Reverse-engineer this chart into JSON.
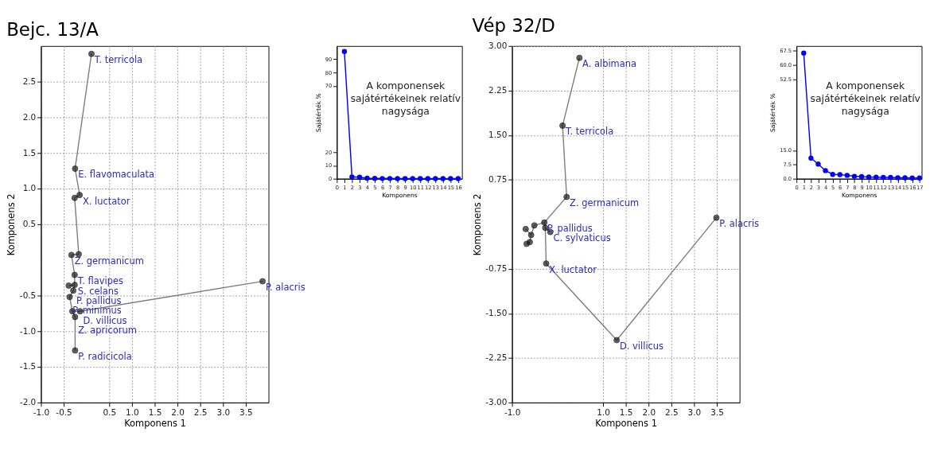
{
  "chart_data": [
    {
      "type": "scatter",
      "title": "Bejc. 13/A",
      "xlabel": "Komponens 1",
      "ylabel": "Komponens 2",
      "xlim": [
        -1,
        4
      ],
      "ylim": [
        -2,
        3
      ],
      "grid": true,
      "xticks": [
        {
          "value": -1,
          "label": "-1.0"
        },
        -0.5,
        0.5,
        {
          "value": 1,
          "label": "1.0"
        },
        1.5,
        {
          "value": 2,
          "label": "2.0"
        },
        2.5,
        {
          "value": 3,
          "label": "3.0"
        },
        3.5
      ],
      "yticks": [
        2.5,
        {
          "value": 2,
          "label": "2.0"
        },
        1.5,
        {
          "value": 1,
          "label": "1.0"
        },
        0.5,
        -0.5,
        {
          "value": -1,
          "label": "-1.0"
        },
        -1.5,
        {
          "value": -2,
          "label": "-2.0"
        }
      ],
      "series": [
        {
          "type": "line",
          "color": "#808080",
          "x": [
            0.11,
            -0.25,
            -0.15,
            -0.26,
            -0.17,
            -0.33,
            -0.26,
            -0.26,
            -0.29,
            -0.37,
            -0.31,
            -0.25,
            -0.25,
            null,
            -0.26,
            -0.39,
            null,
            -0.31,
            -0.14,
            3.87
          ],
          "values": [
            2.89,
            1.28,
            0.91,
            0.87,
            0.08,
            0.07,
            -0.21,
            -0.35,
            -0.43,
            -0.52,
            -0.72,
            -0.8,
            -1.27,
            null,
            -0.35,
            -0.36,
            null,
            -0.72,
            -0.72,
            -0.3
          ]
        },
        {
          "type": "scatter",
          "color": "#1a1a1a",
          "marker": "circle",
          "x": [
            0.11,
            -0.25,
            -0.15,
            -0.26,
            -0.33,
            -0.17,
            -0.26,
            -0.39,
            -0.26,
            -0.29,
            -0.37,
            -0.31,
            -0.14,
            -0.25,
            -0.25,
            3.87
          ],
          "values": [
            2.89,
            1.28,
            0.91,
            0.87,
            0.07,
            0.08,
            -0.21,
            -0.36,
            -0.35,
            -0.43,
            -0.52,
            -0.72,
            -0.72,
            -0.8,
            -1.27,
            -0.3
          ],
          "value_labels": [
            "T. terricola",
            "E. flavomaculata",
            "X. luctator",
            null,
            "Z. germanicum",
            null,
            "T. flavipes",
            null,
            "S. celans",
            "P. pallidus",
            "P. minimus",
            null,
            "D. villicus",
            "Z. apricorum",
            "P. radicicola",
            "P. alacris"
          ]
        }
      ]
    },
    {
      "type": "line",
      "xlabel": "Komponens",
      "ylabel": "Sajátérték %",
      "xlim": [
        0,
        16.5
      ],
      "ylim": [
        0,
        100
      ],
      "marker": "circle",
      "color": "#0000ff",
      "xticks": [
        0,
        1,
        2,
        3,
        4,
        5,
        6,
        7,
        8,
        9,
        10,
        11,
        12,
        13,
        14,
        15,
        16
      ],
      "yticks": [
        0,
        10,
        20,
        70,
        80,
        90
      ],
      "x": [
        1,
        2,
        3,
        4,
        5,
        6,
        7,
        8,
        9,
        10,
        11,
        12,
        13,
        14,
        15,
        16
      ],
      "values": [
        95.8,
        1.4,
        1.2,
        0.4,
        0.3,
        0.2,
        0.2,
        0.1,
        0.1,
        0.1,
        0.1,
        0.1,
        0.1,
        0.1,
        0.1,
        0.1
      ],
      "annotations": [
        "A komponensek",
        "sajátértékeinek relatív",
        "nagysága"
      ]
    },
    {
      "type": "scatter",
      "title": "Vép 32/D",
      "xlabel": "Komponens 1",
      "ylabel": "Komponens 2",
      "xlim": [
        -1,
        4
      ],
      "ylim": [
        -3,
        3
      ],
      "grid": true,
      "xticks": [
        {
          "value": -1,
          "label": "-1.0"
        },
        {
          "value": 1,
          "label": "1.0"
        },
        1.5,
        {
          "value": 2,
          "label": "2.0"
        },
        2.5,
        {
          "value": 3,
          "label": "3.0"
        },
        3.5
      ],
      "yticks": [
        {
          "value": 3,
          "label": "3.00"
        },
        2.25,
        {
          "value": 1.5,
          "label": "1.50"
        },
        0.75,
        -0.75,
        {
          "value": -1.5,
          "label": "-1.50"
        },
        -2.25,
        {
          "value": -3,
          "label": "-3.00"
        }
      ],
      "series": [
        {
          "type": "line",
          "color": "#808080",
          "x": [
            0.48,
            0.11,
            0.2,
            -0.29,
            -0.27,
            -0.25,
            1.3,
            3.49,
            null,
            -0.27,
            -0.16,
            null,
            -0.29,
            -0.51,
            -0.58,
            -0.7,
            null,
            -0.58,
            -0.61,
            -0.68
          ],
          "values": [
            2.8,
            1.66,
            0.46,
            0.03,
            -0.06,
            -0.66,
            -1.95,
            0.11,
            null,
            -0.06,
            -0.13,
            null,
            0.03,
            -0.02,
            -0.18,
            -0.08,
            null,
            -0.18,
            -0.3,
            -0.33
          ]
        },
        {
          "type": "scatter",
          "color": "#1a1a1a",
          "marker": "circle",
          "x": [
            0.48,
            0.11,
            0.2,
            -0.29,
            -0.27,
            -0.16,
            -0.51,
            -0.7,
            -0.58,
            -0.61,
            -0.68,
            -0.25,
            1.3,
            3.49
          ],
          "values": [
            2.8,
            1.66,
            0.46,
            0.03,
            -0.06,
            -0.13,
            -0.02,
            -0.08,
            -0.18,
            -0.3,
            -0.33,
            -0.66,
            -1.95,
            0.11
          ],
          "value_labels": [
            "A. albimana",
            "T. terricola",
            "Z. germanicum",
            "P. pallidus",
            null,
            "C. sylvaticus",
            null,
            null,
            null,
            null,
            null,
            "X. luctator",
            "D. villicus",
            "P. alacris"
          ]
        }
      ]
    },
    {
      "type": "line",
      "xlabel": "Komponens",
      "ylabel": "Sajátérték %",
      "xlim": [
        0,
        17.3
      ],
      "ylim": [
        0,
        70
      ],
      "marker": "circle",
      "color": "#0000ff",
      "xticks": [
        0,
        1,
        2,
        3,
        4,
        5,
        6,
        7,
        8,
        9,
        10,
        11,
        12,
        13,
        14,
        15,
        16,
        17
      ],
      "yticks": [
        {
          "value": 0,
          "label": "0.0"
        },
        7.5,
        {
          "value": 15,
          "label": "15.0"
        },
        52.5,
        {
          "value": 60,
          "label": "60.0"
        },
        67.5
      ],
      "x": [
        1,
        2,
        3,
        4,
        5,
        6,
        7,
        8,
        9,
        10,
        11,
        12,
        13,
        14,
        15,
        16,
        17
      ],
      "values": [
        66.3,
        10.9,
        7.7,
        4.3,
        2.3,
        2.2,
        1.8,
        1.3,
        1.1,
        0.9,
        0.8,
        0.7,
        0.7,
        0.5,
        0.5,
        0.4,
        0.4
      ],
      "annotations": [
        "A komponensek",
        "sajátértékeinek relatív",
        "nagysága"
      ]
    }
  ]
}
